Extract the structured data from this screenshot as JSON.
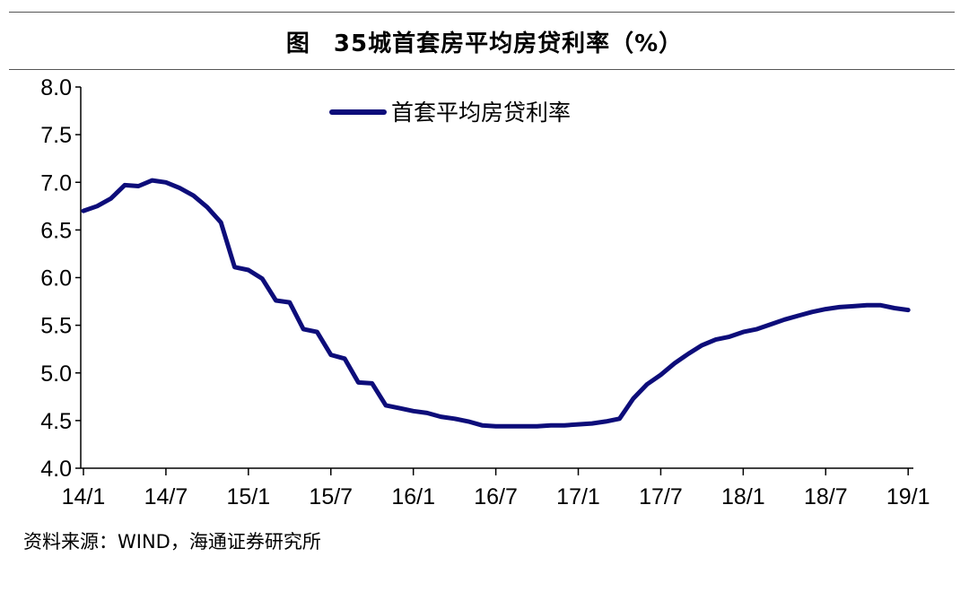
{
  "header": {
    "figure_label": "图",
    "title": "35城首套房平均房贷利率（%）"
  },
  "source": "资料来源：WIND，海通证券研究所",
  "colors": {
    "line": "#0d0d7a",
    "axis": "#000000"
  },
  "chart_data": {
    "type": "line",
    "title": "35城首套房平均房贷利率（%）",
    "xlabel": "",
    "ylabel": "",
    "ylim": [
      4.0,
      8.0
    ],
    "yticks": [
      "4.0",
      "4.5",
      "5.0",
      "5.5",
      "6.0",
      "6.5",
      "7.0",
      "7.5",
      "8.0"
    ],
    "xticks": [
      "14/1",
      "14/7",
      "15/1",
      "15/7",
      "16/1",
      "16/7",
      "17/1",
      "17/7",
      "18/1",
      "18/7",
      "19/1"
    ],
    "grid": false,
    "legend_position": "top-center",
    "series": [
      {
        "name": "首套平均房贷利率",
        "x": [
          "14/1",
          "14/2",
          "14/3",
          "14/4",
          "14/5",
          "14/6",
          "14/7",
          "14/8",
          "14/9",
          "14/10",
          "14/11",
          "14/12",
          "15/1",
          "15/2",
          "15/3",
          "15/4",
          "15/5",
          "15/6",
          "15/7",
          "15/8",
          "15/9",
          "15/10",
          "15/11",
          "15/12",
          "16/1",
          "16/2",
          "16/3",
          "16/4",
          "16/5",
          "16/6",
          "16/7",
          "16/8",
          "16/9",
          "16/10",
          "16/11",
          "16/12",
          "17/1",
          "17/2",
          "17/3",
          "17/4",
          "17/5",
          "17/6",
          "17/7",
          "17/8",
          "17/9",
          "17/10",
          "17/11",
          "17/12",
          "18/1",
          "18/2",
          "18/3",
          "18/4",
          "18/5",
          "18/6",
          "18/7",
          "18/8",
          "18/9",
          "18/10",
          "18/11",
          "18/12",
          "19/1"
        ],
        "values": [
          6.7,
          6.75,
          6.83,
          6.97,
          6.96,
          7.02,
          7.0,
          6.94,
          6.86,
          6.74,
          6.58,
          6.11,
          6.08,
          5.99,
          5.76,
          5.74,
          5.46,
          5.43,
          5.19,
          5.15,
          4.9,
          4.89,
          4.66,
          4.63,
          4.6,
          4.58,
          4.54,
          4.52,
          4.49,
          4.45,
          4.44,
          4.44,
          4.44,
          4.44,
          4.45,
          4.45,
          4.46,
          4.47,
          4.49,
          4.52,
          4.73,
          4.88,
          4.98,
          5.1,
          5.2,
          5.29,
          5.35,
          5.38,
          5.43,
          5.46,
          5.51,
          5.56,
          5.6,
          5.64,
          5.67,
          5.69,
          5.7,
          5.71,
          5.71,
          5.68,
          5.66
        ]
      }
    ]
  }
}
